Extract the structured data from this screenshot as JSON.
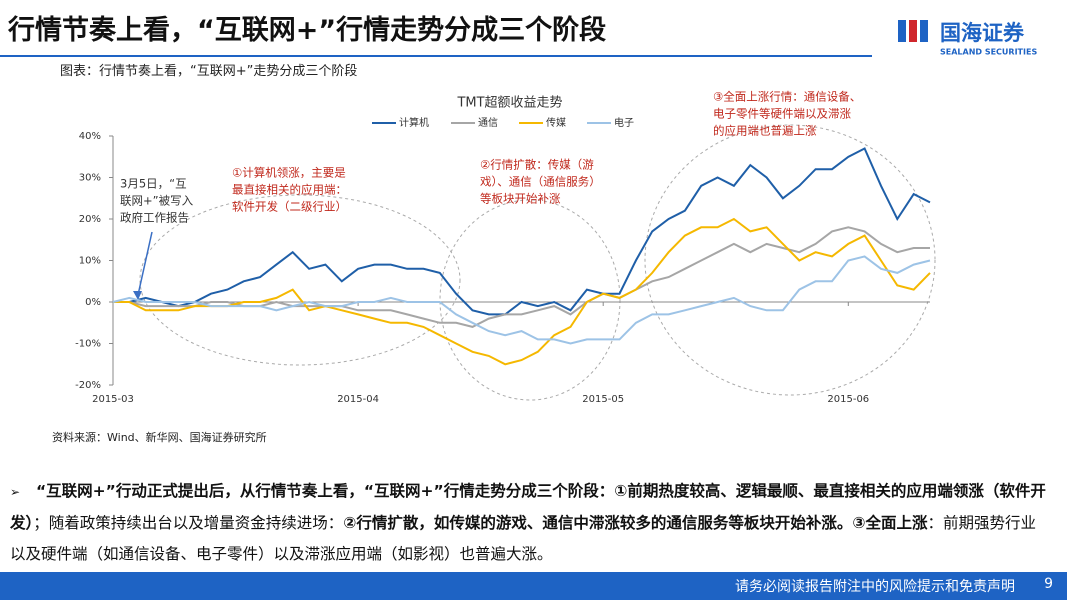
{
  "header": {
    "title": "行情节奏上看，“互联网+”行情走势分成三个阶段",
    "logo": "国海证券",
    "logo_en": "SEALAND SECURITIES"
  },
  "caption": "图表：行情节奏上看，“互联网+”走势分成三个阶段",
  "chart_data": {
    "type": "line",
    "title": "TMT超额收益走势",
    "categories": [
      "2015-03",
      null,
      null,
      null,
      null,
      null,
      null,
      null,
      null,
      null,
      null,
      null,
      null,
      null,
      null,
      "2015-04",
      null,
      null,
      null,
      null,
      null,
      null,
      null,
      null,
      null,
      null,
      null,
      null,
      null,
      null,
      "2015-05",
      null,
      null,
      null,
      null,
      null,
      null,
      null,
      null,
      null,
      null,
      null,
      null,
      null,
      null,
      "2015-06",
      null,
      null,
      null,
      null,
      null
    ],
    "series": [
      {
        "name": "计算机",
        "color": "#1f5fa8",
        "values": [
          0,
          0,
          1,
          0,
          -1,
          0,
          2,
          3,
          5,
          6,
          9,
          12,
          8,
          9,
          5,
          8,
          9,
          9,
          8,
          8,
          7,
          2,
          -2,
          -3,
          -3,
          0,
          -1,
          0,
          -2,
          3,
          2,
          2,
          10,
          17,
          20,
          22,
          28,
          30,
          28,
          33,
          30,
          25,
          28,
          32,
          32,
          35,
          37,
          28,
          20,
          26,
          24
        ]
      },
      {
        "name": "通信",
        "color": "#a6a6a6",
        "values": [
          0,
          0,
          -1,
          -1,
          -1,
          -1,
          0,
          0,
          -1,
          -1,
          0,
          -1,
          -1,
          -1,
          -1,
          -2,
          -2,
          -2,
          -3,
          -4,
          -5,
          -5,
          -6,
          -4,
          -3,
          -3,
          -2,
          -1,
          -3,
          0,
          2,
          1,
          3,
          5,
          6,
          8,
          10,
          12,
          14,
          12,
          14,
          13,
          12,
          14,
          17,
          18,
          17,
          14,
          12,
          13,
          13
        ]
      },
      {
        "name": "传媒",
        "color": "#f5b800",
        "values": [
          0,
          0,
          -2,
          -2,
          -2,
          -1,
          -1,
          -1,
          0,
          0,
          1,
          3,
          -2,
          -1,
          -2,
          -3,
          -4,
          -5,
          -5,
          -6,
          -8,
          -10,
          -12,
          -13,
          -15,
          -14,
          -12,
          -8,
          -6,
          0,
          2,
          1,
          3,
          7,
          12,
          16,
          18,
          18,
          20,
          17,
          18,
          14,
          10,
          12,
          11,
          14,
          16,
          10,
          4,
          3,
          7
        ]
      },
      {
        "name": "电子",
        "color": "#9dc3e6",
        "values": [
          0,
          1,
          0,
          0,
          0,
          0,
          -1,
          -1,
          -1,
          -1,
          -2,
          -1,
          0,
          -1,
          -1,
          0,
          0,
          1,
          0,
          0,
          0,
          -3,
          -5,
          -7,
          -8,
          -7,
          -9,
          -9,
          -10,
          -9,
          -9,
          -9,
          -5,
          -3,
          -3,
          -2,
          -1,
          0,
          1,
          -1,
          -2,
          -2,
          3,
          5,
          5,
          10,
          11,
          8,
          7,
          9,
          10
        ]
      }
    ],
    "ylim": [
      -20,
      40
    ],
    "yticks": [
      {
        "value": -20,
        "label": "-20%"
      },
      {
        "value": -10,
        "label": "-10%"
      },
      {
        "value": 0,
        "label": "0%"
      },
      {
        "value": 10,
        "label": "10%"
      },
      {
        "value": 20,
        "label": "20%"
      },
      {
        "value": 30,
        "label": "30%"
      },
      {
        "value": 40,
        "label": "40%"
      }
    ],
    "legend": "top",
    "annotations": [
      {
        "lines": [
          "3月5日，“互",
          "联网+”被写入",
          "政府工作报告"
        ],
        "color": "#333333"
      },
      {
        "lines": [
          "①计算机领涨，主要是",
          "最直接相关的应用端：",
          "软件开发（二级行业）"
        ],
        "color": "#c0281c"
      },
      {
        "lines": [
          "②行情扩散：传媒（游",
          "戏）、通信（通信服务）",
          "等板块开始补涨"
        ],
        "color": "#c0281c"
      },
      {
        "lines": [
          "③全面上涨行情：通信设备、",
          "电子零件等硬件端以及滞涨",
          "的应用端也普遍上涨"
        ],
        "color": "#c0281c"
      }
    ]
  },
  "source": "资料来源：Wind、新华网、国海证券研究所",
  "bullet": {
    "marker": "➢",
    "segments": [
      {
        "text": "“互联网+”行动正式提出后，从行情节奏上看，“互联网+”行情走势分成三个阶段：①前期热度较高、逻辑最顺、最直接相关的应用端领涨（软件开发）",
        "bold": true
      },
      {
        "text": "；随着政策持续出台以及增量资金持续进场：",
        "bold": false
      },
      {
        "text": "②行情扩散，如传媒的游戏、通信中滞涨较多的通信服务等板块开始补涨。③全面上涨",
        "bold": true
      },
      {
        "text": "：前期强势行业以及硬件端（如通信设备、电子零件）以及滞涨应用端（如影视）也普遍大涨。",
        "bold": false
      }
    ]
  },
  "footer": {
    "text": "请务必阅读报告附注中的风险提示和免责声明",
    "page": "9"
  }
}
